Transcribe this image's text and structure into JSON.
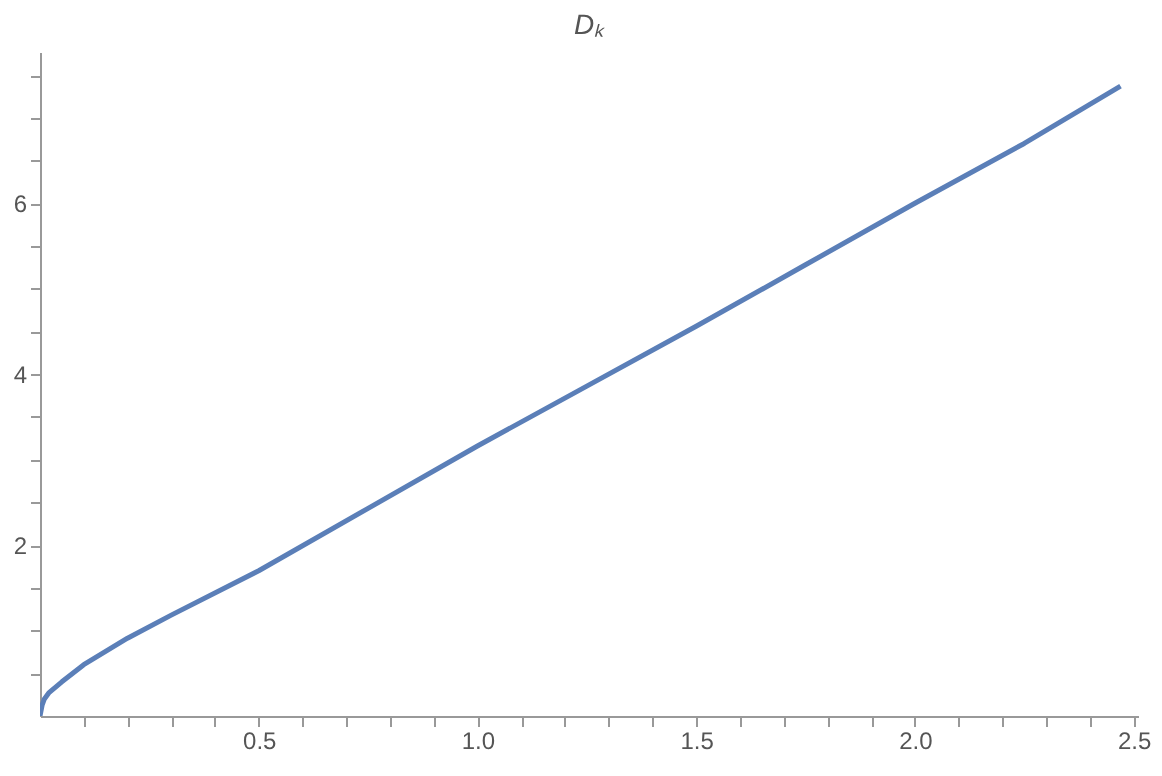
{
  "chart_data": {
    "type": "line",
    "title": "Dₖ",
    "x": [
      0,
      0.005,
      0.01,
      0.02,
      0.05,
      0.1,
      0.2,
      0.3,
      0.5,
      0.75,
      1.0,
      1.25,
      1.5,
      1.75,
      2.0,
      2.25,
      2.47
    ],
    "series": [
      {
        "color": "#5b7fb8",
        "values": [
          0,
          0.13,
          0.2,
          0.27,
          0.4,
          0.6,
          0.91,
          1.18,
          1.7,
          2.43,
          3.16,
          3.86,
          4.56,
          5.28,
          6.0,
          6.7,
          7.37
        ]
      }
    ],
    "xlim": [
      0,
      2.51
    ],
    "ylim": [
      0,
      7.77
    ],
    "xticks": [
      {
        "value": 0.1,
        "label": null
      },
      {
        "value": 0.2,
        "label": null
      },
      {
        "value": 0.3,
        "label": null
      },
      {
        "value": 0.4,
        "label": null
      },
      0.5,
      {
        "value": 0.6,
        "label": null
      },
      {
        "value": 0.7,
        "label": null
      },
      {
        "value": 0.8,
        "label": null
      },
      {
        "value": 0.9,
        "label": null
      },
      {
        "value": 1.0,
        "label": "1.0"
      },
      {
        "value": 1.1,
        "label": null
      },
      {
        "value": 1.2,
        "label": null
      },
      {
        "value": 1.3,
        "label": null
      },
      {
        "value": 1.4,
        "label": null
      },
      1.5,
      {
        "value": 1.6,
        "label": null
      },
      {
        "value": 1.7,
        "label": null
      },
      {
        "value": 1.8,
        "label": null
      },
      {
        "value": 1.9,
        "label": null
      },
      {
        "value": 2.0,
        "label": "2.0"
      },
      {
        "value": 2.1,
        "label": null
      },
      {
        "value": 2.2,
        "label": null
      },
      {
        "value": 2.3,
        "label": null
      },
      {
        "value": 2.4,
        "label": null
      },
      2.5
    ],
    "yticks": [
      {
        "value": 0.5,
        "label": null
      },
      {
        "value": 1,
        "label": null
      },
      {
        "value": 1.5,
        "label": null
      },
      2,
      {
        "value": 2.5,
        "label": null
      },
      {
        "value": 3,
        "label": null
      },
      {
        "value": 3.5,
        "label": null
      },
      4,
      {
        "value": 4.5,
        "label": null
      },
      {
        "value": 5,
        "label": null
      },
      {
        "value": 5.5,
        "label": null
      },
      6,
      {
        "value": 6.5,
        "label": null
      },
      {
        "value": 7,
        "label": null
      },
      {
        "value": 7.5,
        "label": null
      }
    ],
    "grid": false,
    "marker": "none",
    "line_style": "solid"
  }
}
